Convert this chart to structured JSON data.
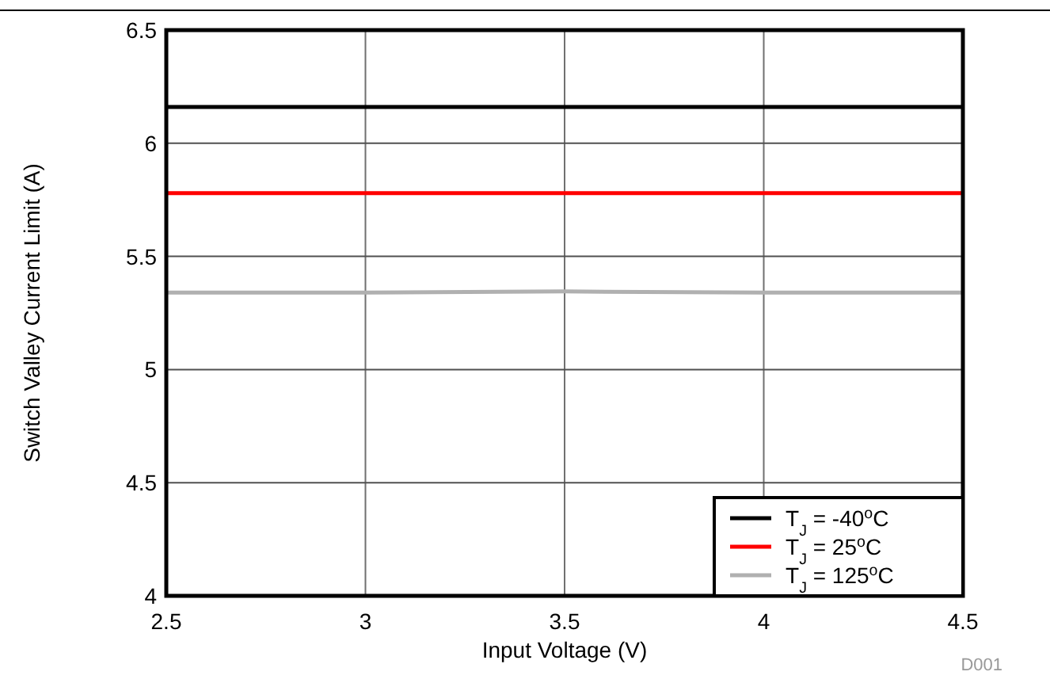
{
  "chart_data": {
    "type": "line",
    "xlabel": "Input Voltage (V)",
    "ylabel": "Switch Valley Current Limit (A)",
    "x": [
      2.5,
      3,
      3.5,
      4,
      4.5
    ],
    "series": [
      {
        "name": "T$_{J}$ = -40$^{o}$C",
        "color": "#000000",
        "values": [
          6.16,
          6.16,
          6.16,
          6.16,
          6.16
        ]
      },
      {
        "name": "T$_{J}$ = 25$^{o}$C",
        "color": "#ff0000",
        "values": [
          5.78,
          5.78,
          5.78,
          5.78,
          5.78
        ]
      },
      {
        "name": "T$_{J}$ = 125$^{o}$C",
        "color": "#b0b0b0",
        "values": [
          5.34,
          5.34,
          5.345,
          5.34,
          5.34
        ]
      }
    ],
    "xlim": [
      2.5,
      4.5
    ],
    "xticks": [
      2.5,
      3,
      3.5,
      4,
      4.5
    ],
    "ylim": [
      4,
      6.5
    ],
    "yticks": [
      4,
      4.5,
      5,
      5.5,
      6,
      6.5
    ],
    "grid": true,
    "legend": "bottom right",
    "marker": "none",
    "line_style": "solid",
    "annotations": [
      "D001"
    ]
  }
}
